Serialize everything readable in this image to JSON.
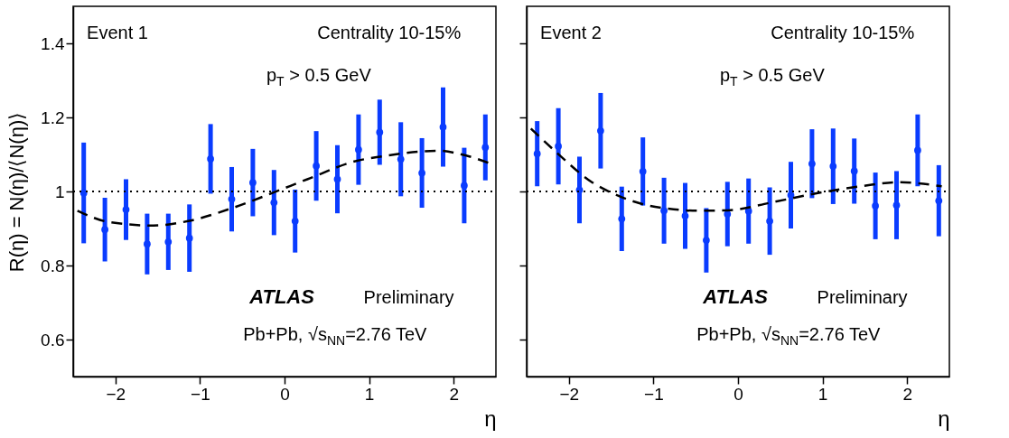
{
  "chart_data": [
    {
      "type": "scatter",
      "ylabel": "R(η) = N(η)/⟨N(η)⟩",
      "xlabel": "η",
      "xlim": [
        -2.5,
        2.5
      ],
      "ylim": [
        0.5,
        1.5
      ],
      "xticks": [
        -2,
        -1,
        0,
        1,
        2
      ],
      "yticks": [
        0.6,
        0.8,
        1,
        1.2,
        1.4
      ],
      "marker": "circle",
      "annotations": [
        "Event 1",
        "Centrality 10-15%",
        "p$_{T}$ > 0.5 GeV",
        "ATLAS",
        "Preliminary",
        "Pb+Pb, √s$_{NN}$=2.76 TeV"
      ],
      "ref_lines": [
        {
          "axis": "y",
          "value": 1,
          "color": "#000000",
          "line_style": "dotted"
        }
      ],
      "series": [
        {
          "type": "scatter",
          "color": "#0a3cff",
          "x": [
            -2.375,
            -2.125,
            -1.875,
            -1.625,
            -1.375,
            -1.125,
            -0.875,
            -0.625,
            -0.375,
            -0.125,
            0.125,
            0.375,
            0.625,
            0.875,
            1.125,
            1.375,
            1.625,
            1.875,
            2.125,
            2.375
          ],
          "values": [
            0.996,
            0.897,
            0.951,
            0.858,
            0.864,
            0.874,
            1.088,
            0.979,
            1.024,
            0.97,
            0.92,
            1.069,
            1.033,
            1.113,
            1.16,
            1.087,
            1.05,
            1.174,
            1.016,
            1.119
          ],
          "errors": [
            0.136,
            0.086,
            0.082,
            0.082,
            0.076,
            0.091,
            0.094,
            0.087,
            0.091,
            0.088,
            0.085,
            0.094,
            0.092,
            0.095,
            0.088,
            0.1,
            0.094,
            0.107,
            0.102,
            0.089
          ]
        },
        {
          "type": "line",
          "color": "#000000",
          "line_style": "dashed",
          "marker": "none",
          "x": [
            -2.45,
            -2.07,
            -1.55,
            -1.14,
            -0.62,
            -0.11,
            0.27,
            0.86,
            1.13,
            1.82,
            2.13,
            2.46
          ],
          "values": [
            0.948,
            0.917,
            0.908,
            0.92,
            0.955,
            0.999,
            1.033,
            1.083,
            1.094,
            1.11,
            1.098,
            1.073
          ]
        }
      ]
    },
    {
      "type": "scatter",
      "xlabel": "η",
      "xlim": [
        -2.5,
        2.5
      ],
      "ylim": [
        0.5,
        1.5
      ],
      "xticks": [
        -2,
        -1,
        0,
        1,
        2
      ],
      "yticks": [
        0.6,
        0.8,
        1,
        1.2,
        1.4
      ],
      "tick_labels": "x",
      "marker": "circle",
      "annotations": [
        "Event 2",
        "Centrality 10-15%",
        "p$_{T}$ > 0.5 GeV",
        "ATLAS",
        "Preliminary",
        "Pb+Pb, √s$_{NN}$=2.76 TeV"
      ],
      "ref_lines": [
        {
          "axis": "y",
          "value": 1,
          "color": "#000000",
          "line_style": "dotted"
        }
      ],
      "series": [
        {
          "type": "scatter",
          "color": "#0a3cff",
          "x": [
            -2.375,
            -2.125,
            -1.875,
            -1.625,
            -1.375,
            -1.125,
            -0.875,
            -0.625,
            -0.375,
            -0.125,
            0.125,
            0.375,
            0.625,
            0.875,
            1.125,
            1.375,
            1.625,
            1.875,
            2.125,
            2.375
          ],
          "values": [
            1.102,
            1.122,
            1.004,
            1.164,
            0.926,
            1.054,
            0.948,
            0.934,
            0.868,
            0.939,
            0.947,
            0.92,
            0.99,
            1.075,
            1.068,
            1.055,
            0.961,
            0.963,
            1.111,
            0.975
          ],
          "errors": [
            0.088,
            0.103,
            0.09,
            0.102,
            0.087,
            0.092,
            0.089,
            0.089,
            0.087,
            0.087,
            0.088,
            0.091,
            0.09,
            0.093,
            0.102,
            0.088,
            0.09,
            0.092,
            0.097,
            0.096
          ]
        },
        {
          "type": "line",
          "color": "#000000",
          "line_style": "dashed",
          "marker": "none",
          "x": [
            -2.45,
            -2.15,
            -1.74,
            -1.4,
            -1.1,
            -0.84,
            -0.47,
            -0.12,
            0.41,
            0.93,
            1.48,
            1.89,
            2.41
          ],
          "values": [
            1.17,
            1.106,
            1.027,
            0.987,
            0.964,
            0.954,
            0.948,
            0.949,
            0.971,
            0.995,
            1.015,
            1.025,
            1.014
          ]
        }
      ]
    }
  ]
}
